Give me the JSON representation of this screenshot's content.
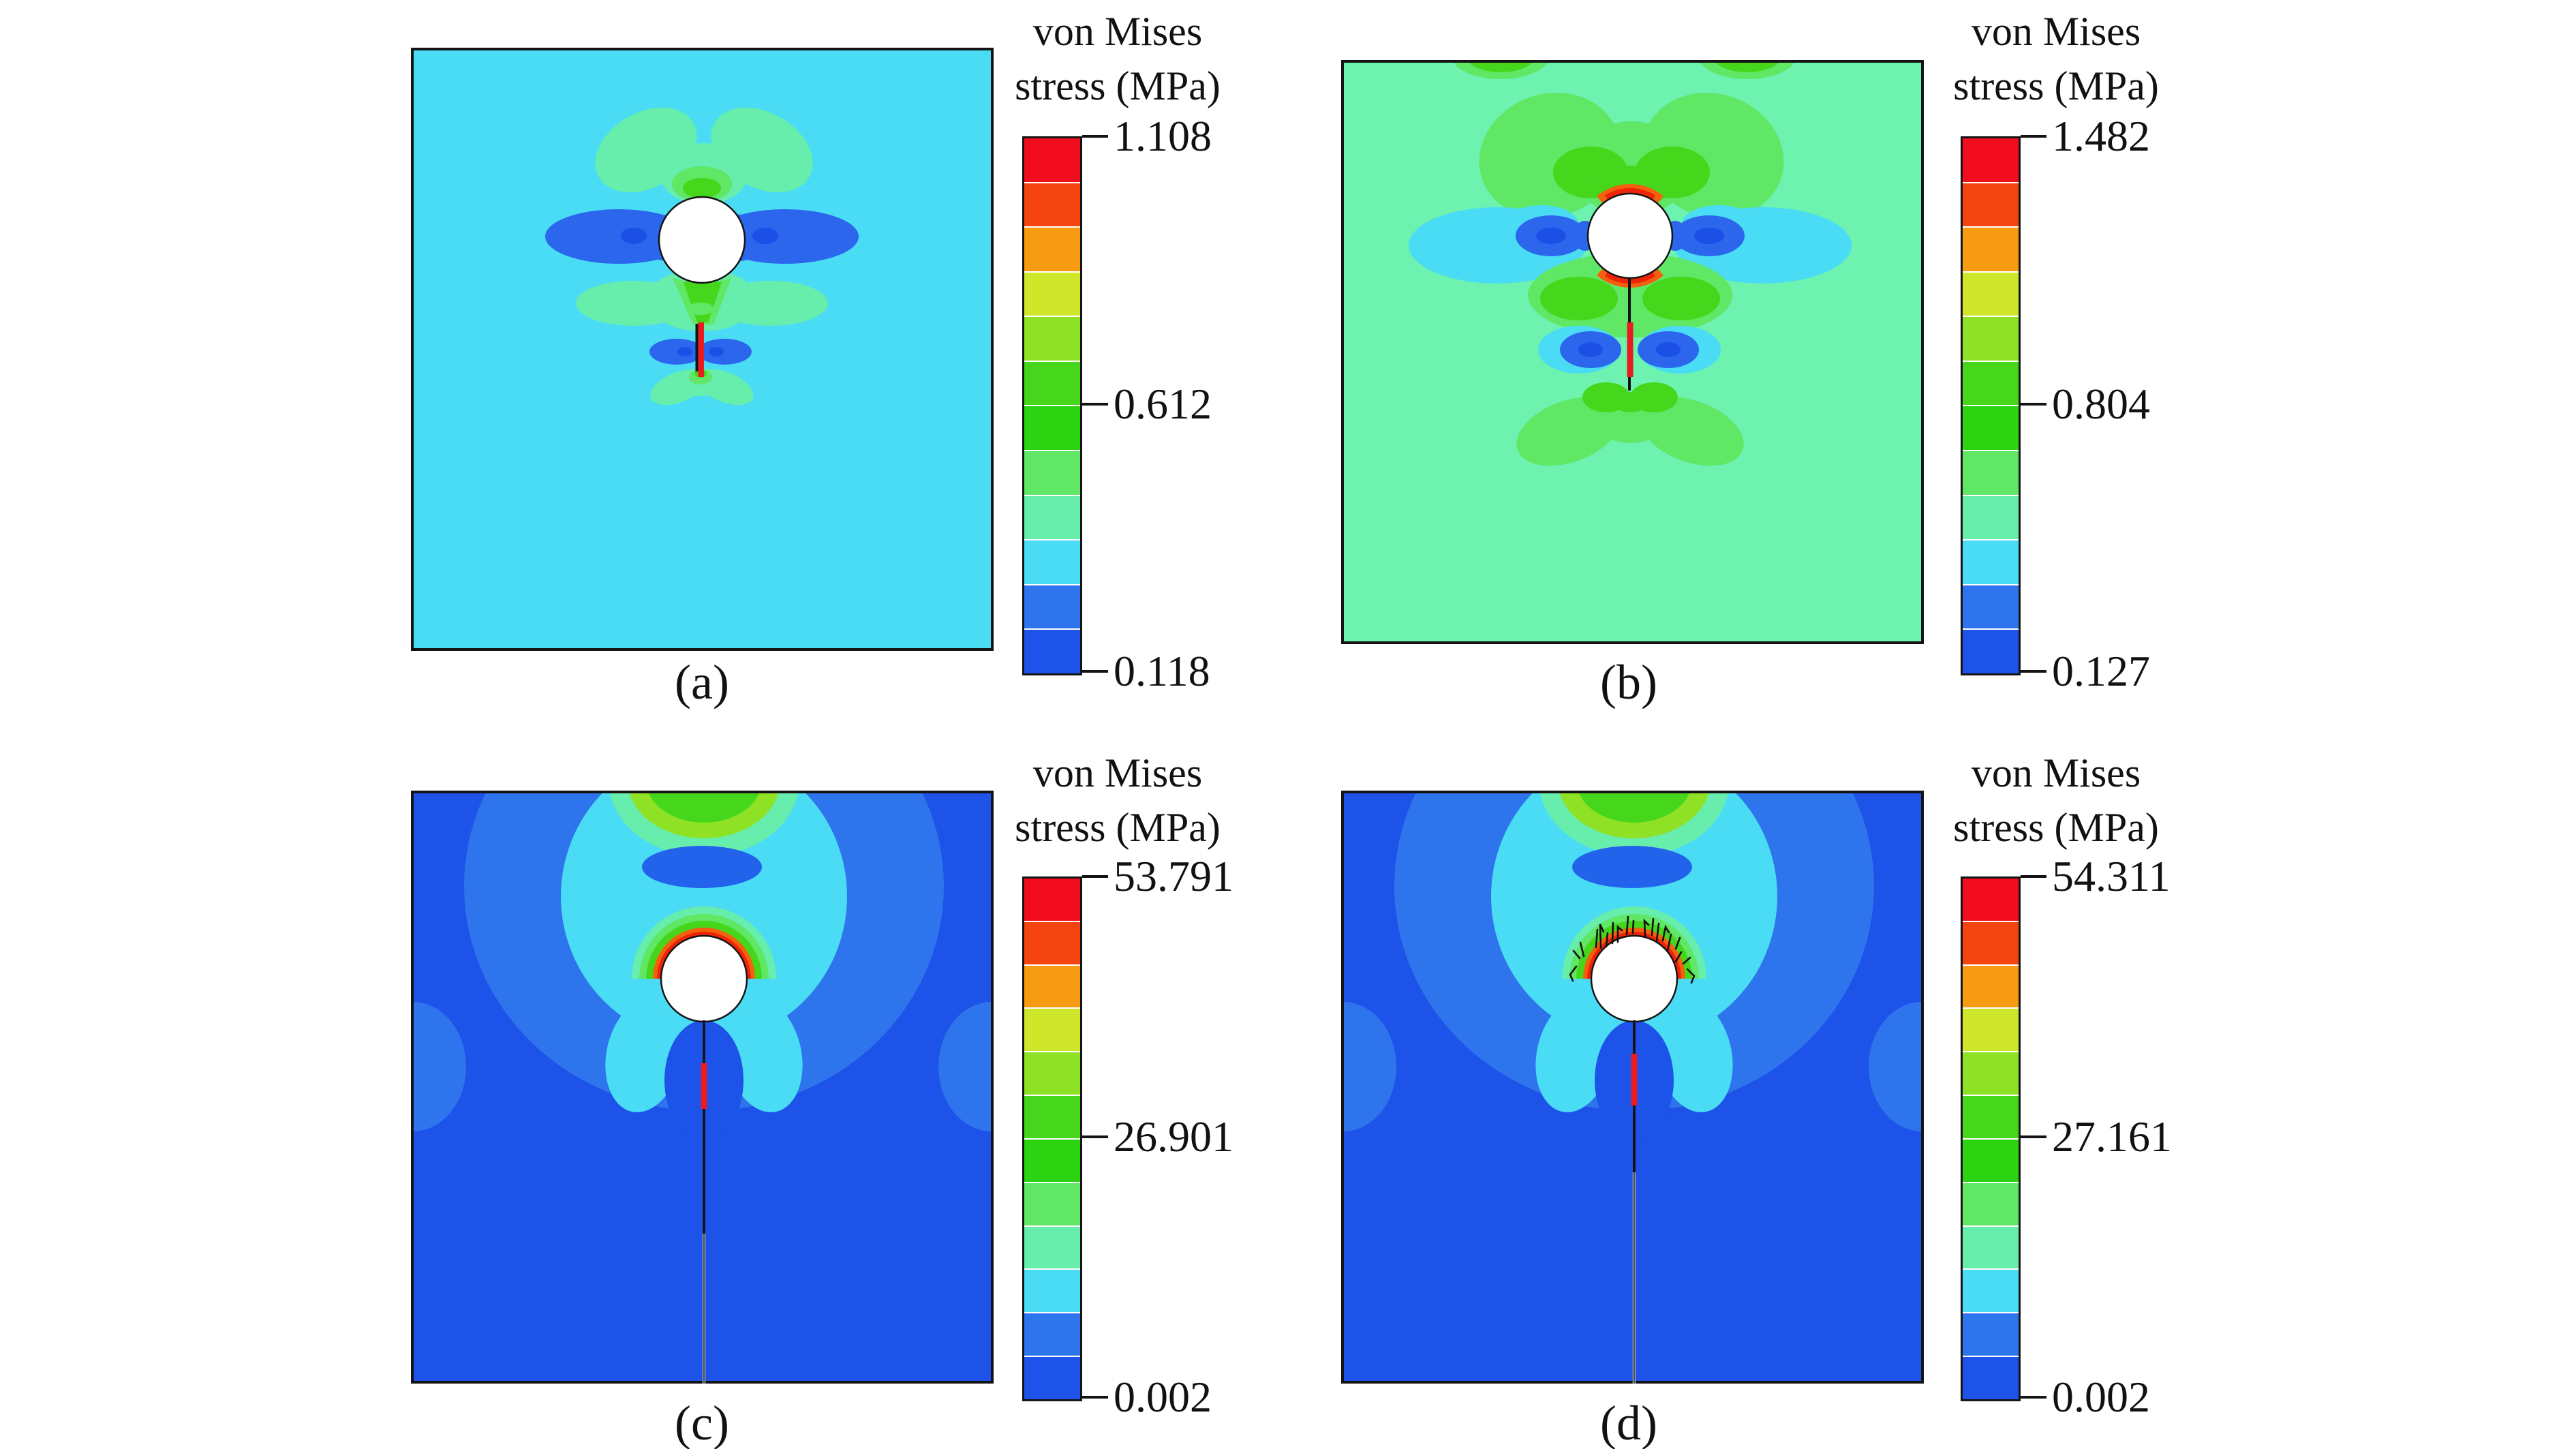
{
  "figure_type": "finite-element von Mises stress contour figure, 2x2 panels",
  "palette": [
    "#F20D1E",
    "#F4440F",
    "#F79C12",
    "#CFE72A",
    "#8FE125",
    "#46D71D",
    "#2BD311",
    "#5FE765",
    "#67EDAC",
    "#4ADCF4",
    "#2E74ED",
    "#1D53E9"
  ],
  "colors": {
    "page_background": "#FFFFFF",
    "plot_border": "#141414",
    "hole_fill": "#FFFFFF",
    "crack_red": "#EA1C22",
    "crack_black": "#141414",
    "crack_gray": "#9AA0A8",
    "panel_backgrounds": {
      "a": "#4ADCF4",
      "b": "#6DF2AF",
      "c": "#1D53E9",
      "d": "#1D53E9"
    }
  },
  "chart_data": [
    {
      "type": "heatmap",
      "label": "(a)",
      "legend_title": [
        "von Mises",
        "stress (MPa)"
      ],
      "colorbar_ticks": [
        "1.108",
        "0.612",
        "0.118"
      ],
      "colorbar_range_mpa": [
        0.118,
        1.108
      ],
      "legend_position": "right",
      "description": "square plate, cyan background; white circular hole upper-center; dark blue horizontal lobes left/right of hole; aquamarine butterfly above hole; green V and aquamarine band below hole; short red vertical crack below hole flanked by blue lobes; aquamarine bowtie at crack tip"
    },
    {
      "type": "heatmap",
      "label": "(b)",
      "legend_title": [
        "von Mises",
        "stress (MPa)"
      ],
      "colorbar_ticks": [
        "1.482",
        "0.804",
        "0.127"
      ],
      "colorbar_range_mpa": [
        0.127,
        1.482
      ],
      "legend_position": "right",
      "description": "square plate, pale green background; white hole with red stress concentration crescents at top and bottom; green butterfly lobes above; cyan side lobes with dark blue cores; black+red crack extending down from hole flanked by blue lobes; green butterfly below crack"
    },
    {
      "type": "heatmap",
      "label": "(c)",
      "legend_title": [
        "von Mises",
        "stress (MPa)"
      ],
      "colorbar_ticks": [
        "53.791",
        "26.901",
        "0.002"
      ],
      "colorbar_range_mpa": [
        0.002,
        53.791
      ],
      "legend_position": "right",
      "description": "square plate, deep blue background; cyan arch from top edge surrounding hole; green band at top edge; dark blue oval above hole; concentric aqua/green/orange/red rings hugging hole top; long vertical crack from hole bottom to lower edge with red segment and gray lower tail"
    },
    {
      "type": "heatmap",
      "label": "(d)",
      "legend_title": [
        "von Mises",
        "stress (MPa)"
      ],
      "colorbar_ticks": [
        "54.311",
        "27.161",
        "0.002"
      ],
      "colorbar_range_mpa": [
        0.002,
        54.311
      ],
      "legend_position": "right",
      "description": "same as panel (c) plus small black branching micro-crack scribbles over the red crescent above the hole; red crack segment slightly longer"
    }
  ]
}
